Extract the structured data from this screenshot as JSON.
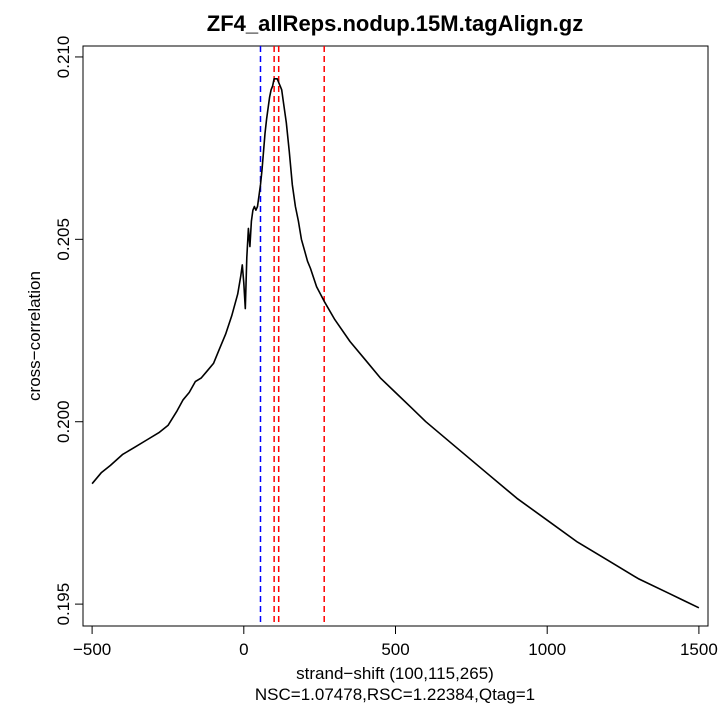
{
  "chart_data": {
    "type": "line",
    "title": "ZF4_allReps.nodup.15M.tagAlign.gz",
    "xlabel": "strand−shift (100,115,265)",
    "subtitle": "NSC=1.07478,RSC=1.22384,Qtag=1",
    "ylabel": "cross−correlation",
    "xlim": [
      -530,
      1530
    ],
    "ylim": [
      0.1944,
      0.2103
    ],
    "xticks": [
      -500,
      0,
      500,
      1000,
      1500
    ],
    "xtick_labels": [
      "−500",
      "0",
      "500",
      "1000",
      "1500"
    ],
    "yticks": [
      0.195,
      0.2,
      0.205,
      0.21
    ],
    "ytick_labels": [
      "0.195",
      "0.200",
      "0.205",
      "0.210"
    ],
    "grid": false,
    "legend": "none",
    "series": [
      {
        "color": "#000000",
        "x": [
          -500,
          -470,
          -440,
          -400,
          -360,
          -320,
          -280,
          -250,
          -220,
          -200,
          -180,
          -160,
          -140,
          -120,
          -100,
          -80,
          -60,
          -40,
          -20,
          -10,
          -5,
          0,
          5,
          10,
          15,
          20,
          25,
          30,
          35,
          40,
          45,
          50,
          55,
          60,
          65,
          70,
          75,
          80,
          85,
          90,
          95,
          100,
          105,
          110,
          115,
          120,
          125,
          130,
          140,
          150,
          160,
          170,
          180,
          190,
          200,
          210,
          220,
          240,
          265,
          300,
          350,
          400,
          450,
          500,
          550,
          600,
          700,
          800,
          900,
          1000,
          1100,
          1200,
          1300,
          1400,
          1450,
          1500
        ],
        "y": [
          0.1983,
          0.1986,
          0.1988,
          0.1991,
          0.1993,
          0.1995,
          0.1997,
          0.1999,
          0.2003,
          0.2006,
          0.2008,
          0.2011,
          0.2012,
          0.2014,
          0.2016,
          0.202,
          0.2024,
          0.2029,
          0.2035,
          0.204,
          0.2043,
          0.2038,
          0.2031,
          0.2045,
          0.2053,
          0.2048,
          0.2055,
          0.2058,
          0.2059,
          0.2058,
          0.2059,
          0.2062,
          0.2065,
          0.2069,
          0.2074,
          0.2079,
          0.2083,
          0.2086,
          0.2089,
          0.2091,
          0.2092,
          0.2094,
          0.2094,
          0.2094,
          0.2093,
          0.2092,
          0.2091,
          0.2088,
          0.2082,
          0.2074,
          0.2065,
          0.2059,
          0.2055,
          0.205,
          0.2047,
          0.2044,
          0.2042,
          0.2037,
          0.2033,
          0.2028,
          0.2022,
          0.2017,
          0.2012,
          0.2008,
          0.2004,
          0.2,
          0.1993,
          0.1986,
          0.1979,
          0.1973,
          0.1967,
          0.1962,
          0.1957,
          0.1953,
          0.1951,
          0.1949
        ]
      }
    ],
    "vlines": [
      {
        "x": 55,
        "color": "#0000ff",
        "style": "dashed"
      },
      {
        "x": 100,
        "color": "#ff0000",
        "style": "dashed"
      },
      {
        "x": 115,
        "color": "#ff0000",
        "style": "dashed"
      },
      {
        "x": 265,
        "color": "#ff0000",
        "style": "dashed"
      }
    ]
  }
}
